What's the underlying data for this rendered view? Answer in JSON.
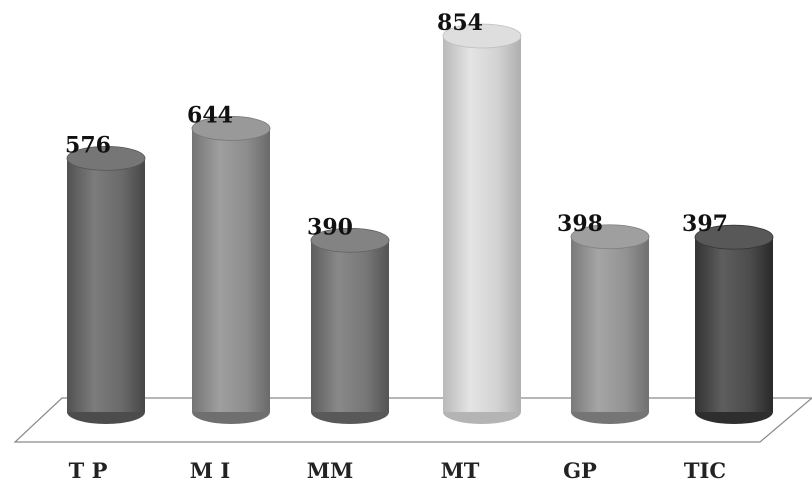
{
  "chart_data": {
    "type": "bar",
    "style": "3d-cylinder",
    "categories": [
      "T P",
      "M I",
      "MM",
      "MT",
      "GP",
      "TIC"
    ],
    "values": [
      576,
      644,
      390,
      854,
      398,
      397
    ],
    "data_labels": [
      "576",
      "644",
      "390",
      "854",
      "398",
      "397"
    ],
    "title": "",
    "xlabel": "",
    "ylabel": "",
    "ylim": [
      0,
      900
    ],
    "grid": false,
    "legend": "none",
    "colors": [
      "#6a6a6a",
      "#8d8d8d",
      "#777777",
      "#d2d2d2",
      "#939393",
      "#4c4c4c"
    ]
  }
}
